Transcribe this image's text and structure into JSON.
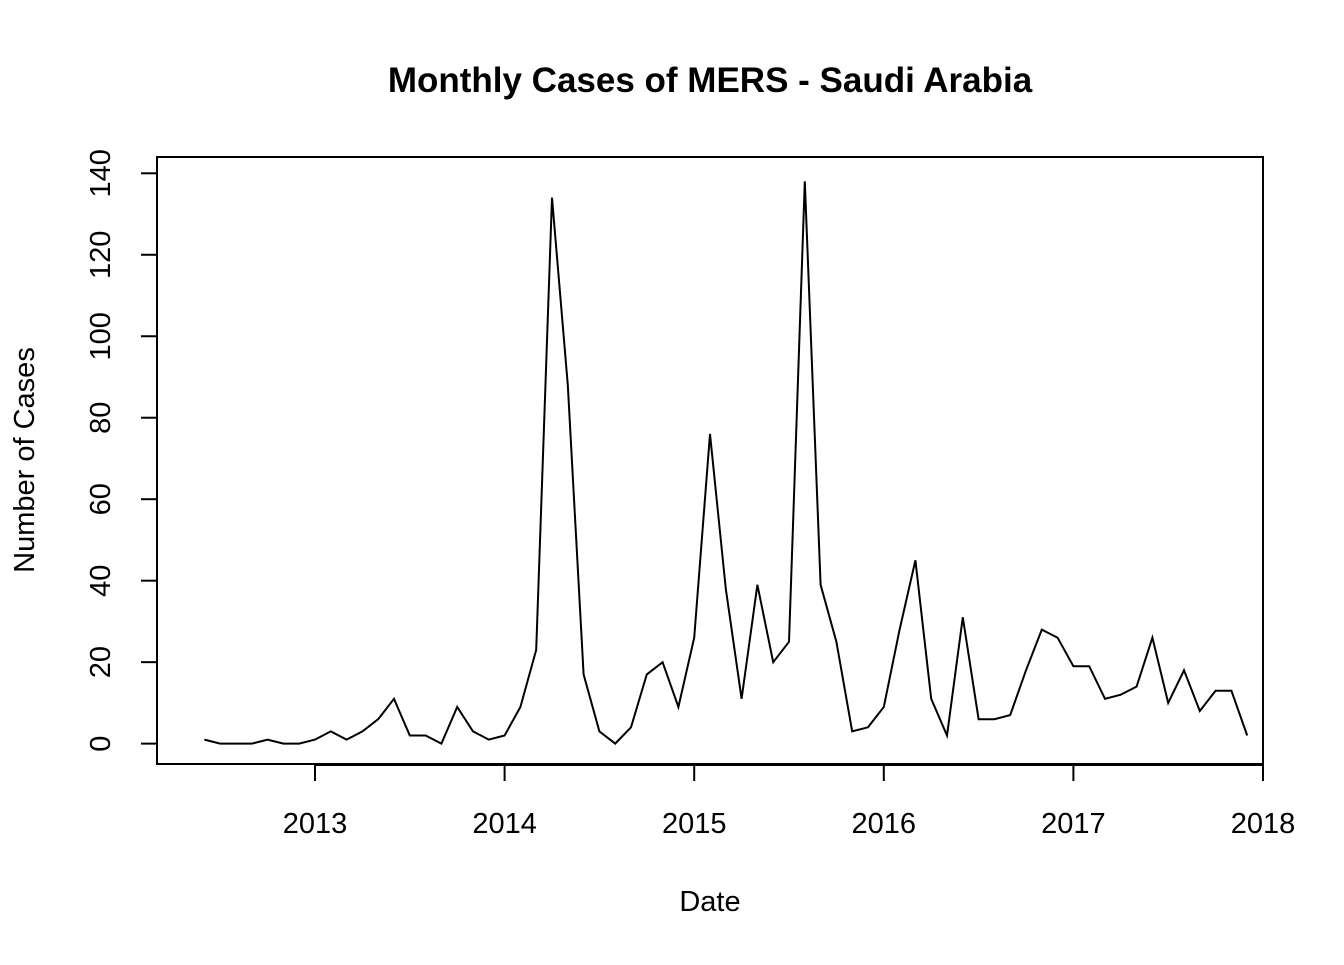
{
  "chart_data": {
    "type": "line",
    "title": "Monthly Cases of MERS - Saudi Arabia",
    "xlabel": "Date",
    "ylabel": "Number of Cases",
    "grid": false,
    "legend": "none",
    "xlim": [
      "2012-03",
      "2018-01"
    ],
    "ylim": [
      -5,
      144
    ],
    "x_ticks": [
      "2013",
      "2014",
      "2015",
      "2016",
      "2017",
      "2018"
    ],
    "y_ticks": [
      0,
      20,
      40,
      60,
      80,
      100,
      120,
      140
    ],
    "line_color": "#000000",
    "x": [
      "2012-06",
      "2012-07",
      "2012-08",
      "2012-09",
      "2012-10",
      "2012-11",
      "2012-12",
      "2013-01",
      "2013-02",
      "2013-03",
      "2013-04",
      "2013-05",
      "2013-06",
      "2013-07",
      "2013-08",
      "2013-09",
      "2013-10",
      "2013-11",
      "2013-12",
      "2014-01",
      "2014-02",
      "2014-03",
      "2014-04",
      "2014-05",
      "2014-06",
      "2014-07",
      "2014-08",
      "2014-09",
      "2014-10",
      "2014-11",
      "2014-12",
      "2015-01",
      "2015-02",
      "2015-03",
      "2015-04",
      "2015-05",
      "2015-06",
      "2015-07",
      "2015-08",
      "2015-09",
      "2015-10",
      "2015-11",
      "2015-12",
      "2016-01",
      "2016-02",
      "2016-03",
      "2016-04",
      "2016-05",
      "2016-06",
      "2016-07",
      "2016-08",
      "2016-09",
      "2016-10",
      "2016-11",
      "2016-12",
      "2017-01",
      "2017-02",
      "2017-03",
      "2017-04",
      "2017-05",
      "2017-06",
      "2017-07",
      "2017-08",
      "2017-09",
      "2017-10",
      "2017-11",
      "2017-12"
    ],
    "series": [
      {
        "values": [
          1,
          0,
          0,
          0,
          1,
          0,
          0,
          1,
          3,
          1,
          3,
          6,
          11,
          2,
          2,
          0,
          9,
          3,
          1,
          2,
          9,
          23,
          134,
          88,
          17,
          3,
          0,
          4,
          17,
          20,
          9,
          26,
          76,
          38,
          11,
          39,
          20,
          25,
          138,
          39,
          25,
          3,
          4,
          9,
          28,
          45,
          11,
          2,
          31,
          6,
          6,
          7,
          18,
          28,
          26,
          19,
          19,
          11,
          12,
          14,
          26,
          10,
          18,
          8,
          13,
          13,
          2
        ]
      }
    ]
  }
}
